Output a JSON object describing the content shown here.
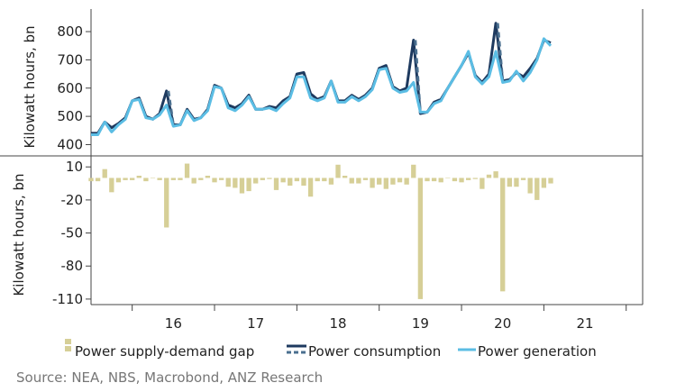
{
  "chart_data": [
    {
      "type": "line",
      "ylabel": "Kilowatt hours, bn",
      "ylim": [
        360,
        880
      ],
      "y_ticks": [
        "400",
        "500",
        "600",
        "700",
        "800"
      ],
      "x_ticks": [
        "16",
        "17",
        "18",
        "19",
        "20",
        "21"
      ],
      "x_start": 2015.5,
      "x_step_months": 1,
      "grid": false,
      "colors": {
        "consumption": "#1e3a5f",
        "consumption_dashed": "#4a6f8f",
        "generation": "#5bbde4"
      },
      "series": [
        {
          "name": "Power consumption",
          "values": [
            440,
            440,
            480,
            460,
            475,
            495,
            555,
            565,
            500,
            490,
            510,
            590,
            470,
            470,
            525,
            490,
            495,
            525,
            610,
            600,
            540,
            530,
            545,
            575,
            525,
            525,
            535,
            530,
            555,
            570,
            650,
            655,
            580,
            560,
            570,
            625,
            555,
            555,
            575,
            560,
            575,
            600,
            670,
            680,
            605,
            590,
            600,
            770,
            510,
            515,
            550,
            560,
            600,
            640,
            680,
            725,
            645,
            620,
            650,
            830,
            625,
            630,
            655,
            640,
            670,
            705,
            770,
            760
          ]
        },
        {
          "name": "Power generation",
          "values": [
            435,
            435,
            480,
            445,
            470,
            490,
            555,
            560,
            495,
            490,
            505,
            540,
            465,
            470,
            520,
            485,
            495,
            520,
            605,
            600,
            530,
            520,
            540,
            570,
            525,
            525,
            530,
            520,
            545,
            565,
            640,
            640,
            565,
            555,
            565,
            625,
            550,
            550,
            570,
            555,
            570,
            595,
            665,
            670,
            600,
            585,
            590,
            620,
            515,
            515,
            545,
            555,
            600,
            640,
            680,
            730,
            640,
            615,
            640,
            730,
            620,
            625,
            660,
            625,
            655,
            700,
            775,
            750
          ]
        }
      ]
    },
    {
      "type": "bar",
      "ylabel": "Kilowatt hours, bn",
      "ylim": [
        -115,
        20
      ],
      "y_ticks": [
        "10",
        "-20",
        "-50",
        "-80",
        "-110"
      ],
      "x_ticks": [
        "16",
        "17",
        "18",
        "19",
        "20",
        "21"
      ],
      "x_start": 2015.5,
      "x_step_months": 1,
      "colors": {
        "bar": "#d6cf97"
      },
      "series": [
        {
          "name": "Power supply-demand gap",
          "values": [
            -3,
            -3,
            8,
            -13,
            -4,
            -2,
            -2,
            2,
            -3,
            0,
            -2,
            -45,
            -2,
            -2,
            13,
            -5,
            -2,
            2,
            -4,
            -2,
            -8,
            -9,
            -14,
            -12,
            -5,
            -2,
            -1,
            -11,
            -4,
            -7,
            -3,
            -7,
            -17,
            -3,
            -3,
            -6,
            12,
            2,
            -5,
            -5,
            -2,
            -9,
            -6,
            -10,
            -6,
            -4,
            -6,
            12,
            -110,
            -3,
            -3,
            -4,
            0,
            -3,
            -4,
            -2,
            -1,
            -10,
            3,
            6,
            -103,
            -8,
            -8,
            -2,
            -14,
            -20,
            -9,
            -5
          ]
        }
      ]
    }
  ],
  "legend": [
    {
      "key": "gap",
      "label": "Power supply-demand gap"
    },
    {
      "key": "consumption",
      "label": "Power consumption"
    },
    {
      "key": "generation",
      "label": "Power generation"
    }
  ],
  "source": "Source: NEA, NBS, Macrobond, ANZ Research"
}
